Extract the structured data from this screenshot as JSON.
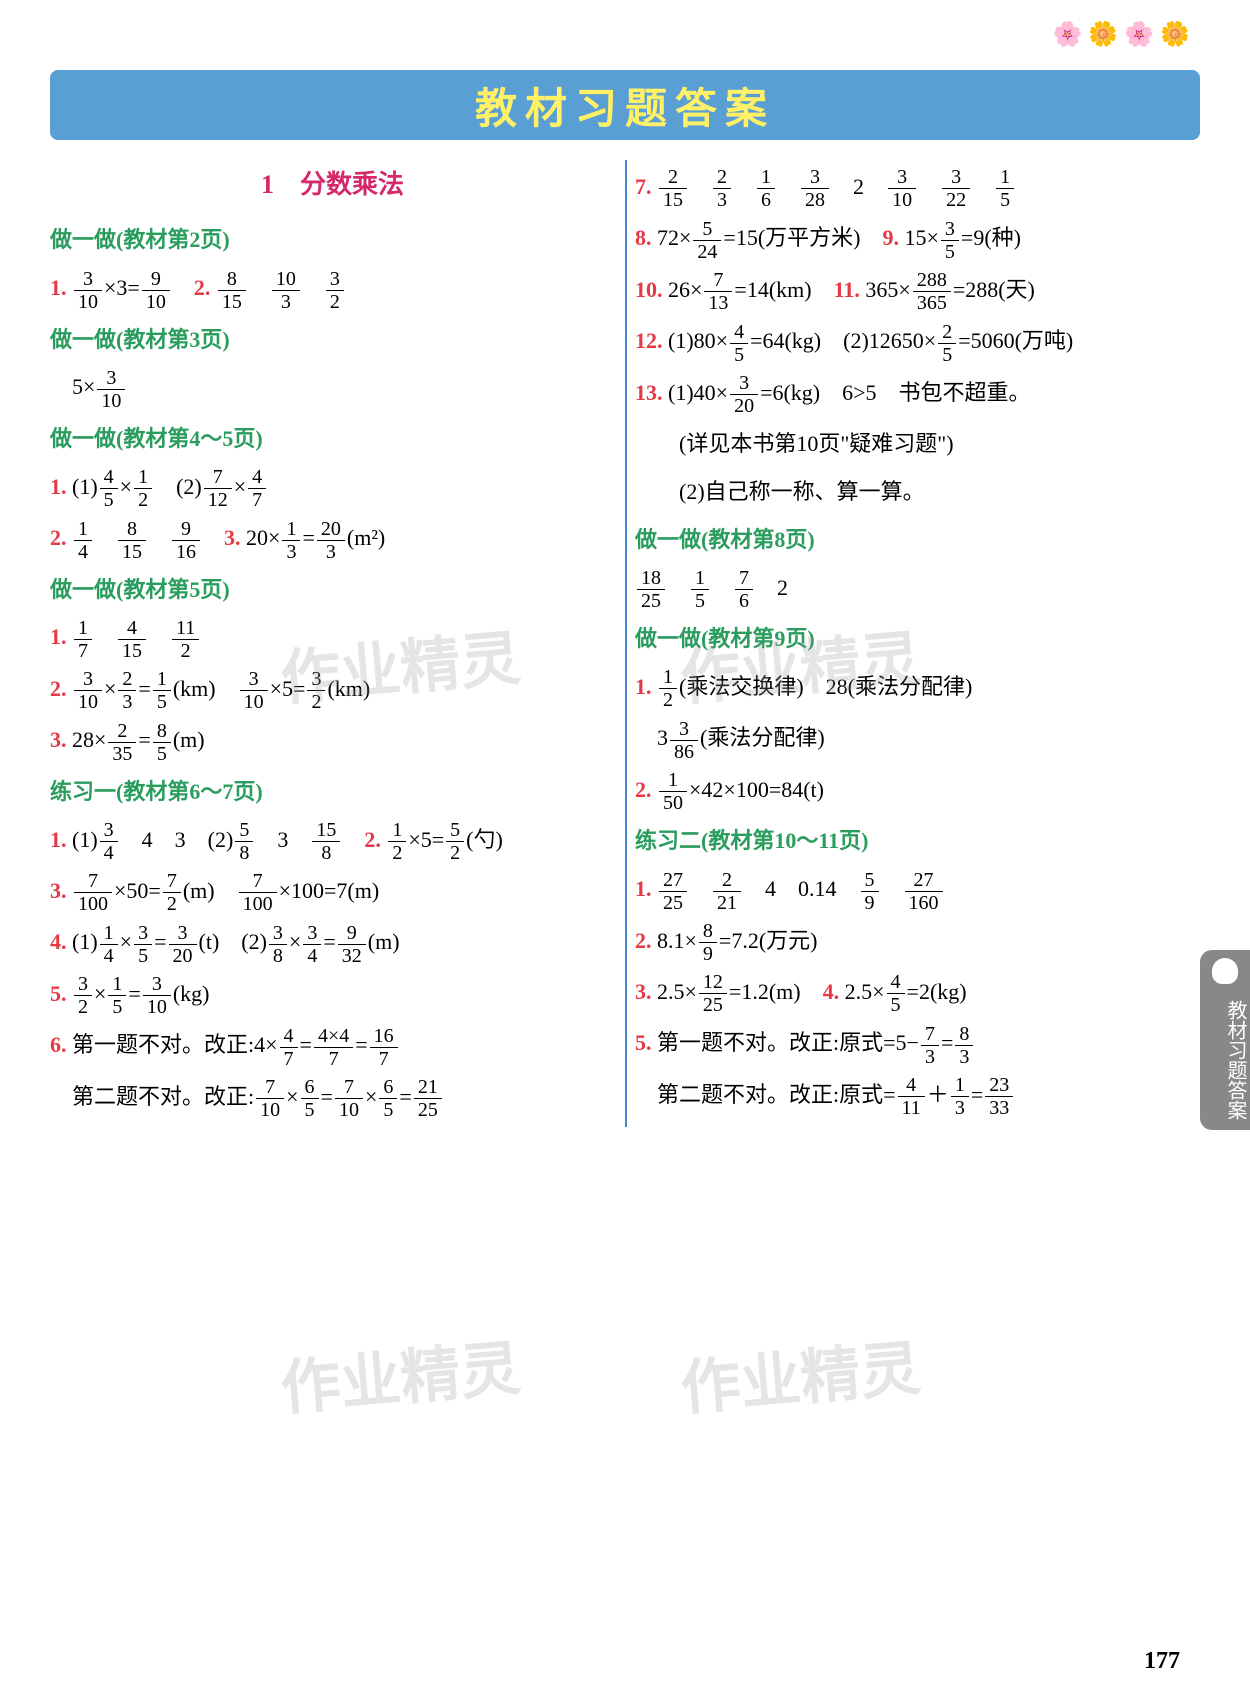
{
  "banner_title": "教材习题答案",
  "chapter_title": "1　分数乘法",
  "page_number": "177",
  "side_tab": "教材习题答案",
  "watermark": "作业精灵",
  "colors": {
    "banner_bg": "#5a9fd4",
    "banner_text": "#fff066",
    "chapter_title": "#d4286b",
    "heading_green": "#2a9d5e",
    "number_red": "#e63946",
    "divider": "#4488cc",
    "side_tab_bg": "#888888",
    "body_text": "#000000",
    "background": "#ffffff"
  },
  "typography": {
    "banner_fontsize": 42,
    "chapter_fontsize": 26,
    "body_fontsize": 22,
    "frac_fontsize": 20,
    "page_num_fontsize": 24
  },
  "left_column": [
    {
      "type": "heading",
      "text": "做一做(教材第2页)"
    },
    {
      "type": "item",
      "num": "1.",
      "parts": [
        {
          "frac": [
            3,
            10
          ]
        },
        "×3=",
        {
          "frac": [
            9,
            10
          ]
        },
        "　"
      ],
      "num2": "2.",
      "parts2": [
        {
          "frac": [
            8,
            15
          ]
        },
        "　",
        {
          "frac": [
            10,
            3
          ]
        },
        "　",
        {
          "frac": [
            3,
            2
          ]
        }
      ]
    },
    {
      "type": "heading",
      "text": "做一做(教材第3页)"
    },
    {
      "type": "plain",
      "parts": [
        "　5×",
        {
          "frac": [
            3,
            10
          ]
        }
      ]
    },
    {
      "type": "heading",
      "text": "做一做(教材第4～5页)"
    },
    {
      "type": "item",
      "num": "1.",
      "parts": [
        "(1)",
        {
          "frac": [
            4,
            5
          ]
        },
        "×",
        {
          "frac": [
            1,
            2
          ]
        },
        "　(2)",
        {
          "frac": [
            7,
            12
          ]
        },
        "×",
        {
          "frac": [
            4,
            7
          ]
        }
      ]
    },
    {
      "type": "item",
      "num": "2.",
      "parts": [
        {
          "frac": [
            1,
            4
          ]
        },
        "　",
        {
          "frac": [
            8,
            15
          ]
        },
        "　",
        {
          "frac": [
            9,
            16
          ]
        },
        "　"
      ],
      "num2": "3.",
      "parts2": [
        "20×",
        {
          "frac": [
            1,
            3
          ]
        },
        "=",
        {
          "frac": [
            20,
            3
          ]
        },
        "(m²)"
      ]
    },
    {
      "type": "heading",
      "text": "做一做(教材第5页)"
    },
    {
      "type": "item",
      "num": "1.",
      "parts": [
        {
          "frac": [
            1,
            7
          ]
        },
        "　",
        {
          "frac": [
            4,
            15
          ]
        },
        "　",
        {
          "frac": [
            11,
            2
          ]
        }
      ]
    },
    {
      "type": "item",
      "num": "2.",
      "parts": [
        {
          "frac": [
            3,
            10
          ]
        },
        "×",
        {
          "frac": [
            2,
            3
          ]
        },
        "=",
        {
          "frac": [
            1,
            5
          ]
        },
        "(km)　",
        {
          "frac": [
            3,
            10
          ]
        },
        "×5=",
        {
          "frac": [
            3,
            2
          ]
        },
        "(km)"
      ]
    },
    {
      "type": "item",
      "num": "3.",
      "parts": [
        "28×",
        {
          "frac": [
            2,
            35
          ]
        },
        "=",
        {
          "frac": [
            8,
            5
          ]
        },
        "(m)"
      ]
    },
    {
      "type": "heading",
      "text": "练习一(教材第6～7页)"
    },
    {
      "type": "item",
      "num": "1.",
      "parts": [
        "(1)",
        {
          "frac": [
            3,
            4
          ]
        },
        "　4　3　(2)",
        {
          "frac": [
            5,
            8
          ]
        },
        "　3　",
        {
          "frac": [
            15,
            8
          ]
        },
        "　"
      ],
      "num2": "2.",
      "parts2": [
        {
          "frac": [
            1,
            2
          ]
        },
        "×5=",
        {
          "frac": [
            5,
            2
          ]
        },
        "(勺)"
      ]
    },
    {
      "type": "item",
      "num": "3.",
      "parts": [
        {
          "frac": [
            7,
            100
          ]
        },
        "×50=",
        {
          "frac": [
            7,
            2
          ]
        },
        "(m)　",
        {
          "frac": [
            7,
            100
          ]
        },
        "×100=7(m)"
      ]
    },
    {
      "type": "item",
      "num": "4.",
      "parts": [
        "(1)",
        {
          "frac": [
            1,
            4
          ]
        },
        "×",
        {
          "frac": [
            3,
            5
          ]
        },
        "=",
        {
          "frac": [
            3,
            20
          ]
        },
        "(t)　(2)",
        {
          "frac": [
            3,
            8
          ]
        },
        "×",
        {
          "frac": [
            3,
            4
          ]
        },
        "=",
        {
          "frac": [
            9,
            32
          ]
        },
        "(m)"
      ]
    },
    {
      "type": "item",
      "num": "5.",
      "parts": [
        {
          "frac": [
            3,
            2
          ]
        },
        "×",
        {
          "frac": [
            1,
            5
          ]
        },
        "=",
        {
          "frac": [
            3,
            10
          ]
        },
        "(kg)"
      ]
    },
    {
      "type": "item",
      "num": "6.",
      "parts": [
        "第一题不对。改正:4×",
        {
          "frac": [
            4,
            7
          ]
        },
        "=",
        {
          "frac": [
            "4×4",
            7
          ]
        },
        "=",
        {
          "frac": [
            16,
            7
          ]
        }
      ]
    },
    {
      "type": "plain",
      "parts": [
        "　第二题不对。改正:",
        {
          "frac": [
            7,
            10
          ]
        },
        "×",
        {
          "frac": [
            6,
            5
          ]
        },
        "=",
        {
          "frac": [
            7,
            10
          ]
        },
        "×",
        {
          "frac": [
            6,
            5
          ]
        },
        "=",
        {
          "frac": [
            21,
            25
          ]
        }
      ]
    }
  ],
  "right_column": [
    {
      "type": "item",
      "num": "7.",
      "parts": [
        {
          "frac": [
            2,
            15
          ]
        },
        "　",
        {
          "frac": [
            2,
            3
          ]
        },
        "　",
        {
          "frac": [
            1,
            6
          ]
        },
        "　",
        {
          "frac": [
            3,
            28
          ]
        },
        "　2　",
        {
          "frac": [
            3,
            10
          ]
        },
        "　",
        {
          "frac": [
            3,
            22
          ]
        },
        "　",
        {
          "frac": [
            1,
            5
          ]
        }
      ]
    },
    {
      "type": "item",
      "num": "8.",
      "parts": [
        "72×",
        {
          "frac": [
            5,
            24
          ]
        },
        "=15(万平方米)　"
      ],
      "num2": "9.",
      "parts2": [
        "15×",
        {
          "frac": [
            3,
            5
          ]
        },
        "=9(种)"
      ]
    },
    {
      "type": "item",
      "num": "10.",
      "parts": [
        "26×",
        {
          "frac": [
            7,
            13
          ]
        },
        "=14(km)　"
      ],
      "num2": "11.",
      "parts2": [
        "365×",
        {
          "frac": [
            288,
            365
          ]
        },
        "=288(天)"
      ]
    },
    {
      "type": "item",
      "num": "12.",
      "parts": [
        "(1)80×",
        {
          "frac": [
            4,
            5
          ]
        },
        "=64(kg)　(2)12650×",
        {
          "frac": [
            2,
            5
          ]
        },
        "=5060(万吨)"
      ]
    },
    {
      "type": "item",
      "num": "13.",
      "parts": [
        "(1)40×",
        {
          "frac": [
            3,
            20
          ]
        },
        "=6(kg)　6>5　书包不超重。"
      ]
    },
    {
      "type": "plain",
      "parts": [
        "　　(详见本书第10页\"疑难习题\")"
      ]
    },
    {
      "type": "plain",
      "parts": [
        "　　(2)自己称一称、算一算。"
      ]
    },
    {
      "type": "heading",
      "text": "做一做(教材第8页)"
    },
    {
      "type": "plain",
      "parts": [
        {
          "frac": [
            18,
            25
          ]
        },
        "　",
        {
          "frac": [
            1,
            5
          ]
        },
        "　",
        {
          "frac": [
            7,
            6
          ]
        },
        "　2"
      ]
    },
    {
      "type": "heading",
      "text": "做一做(教材第9页)"
    },
    {
      "type": "item",
      "num": "1.",
      "parts": [
        {
          "frac": [
            1,
            2
          ]
        },
        "(乘法交换律)　28(乘法分配律)"
      ]
    },
    {
      "type": "plain",
      "parts": [
        "　3",
        {
          "frac": [
            3,
            86
          ]
        },
        "(乘法分配律)"
      ]
    },
    {
      "type": "item",
      "num": "2.",
      "parts": [
        {
          "frac": [
            1,
            50
          ]
        },
        "×42×100=84(t)"
      ]
    },
    {
      "type": "heading",
      "text": "练习二(教材第10～11页)"
    },
    {
      "type": "item",
      "num": "1.",
      "parts": [
        {
          "frac": [
            27,
            25
          ]
        },
        "　",
        {
          "frac": [
            2,
            21
          ]
        },
        "　4　0.14　",
        {
          "frac": [
            5,
            9
          ]
        },
        "　",
        {
          "frac": [
            27,
            160
          ]
        }
      ]
    },
    {
      "type": "item",
      "num": "2.",
      "parts": [
        "8.1×",
        {
          "frac": [
            8,
            9
          ]
        },
        "=7.2(万元)"
      ]
    },
    {
      "type": "item",
      "num": "3.",
      "parts": [
        "2.5×",
        {
          "frac": [
            12,
            25
          ]
        },
        "=1.2(m)　"
      ],
      "num2": "4.",
      "parts2": [
        "2.5×",
        {
          "frac": [
            4,
            5
          ]
        },
        "=2(kg)"
      ]
    },
    {
      "type": "item",
      "num": "5.",
      "parts": [
        "第一题不对。改正:原式=5−",
        {
          "frac": [
            7,
            3
          ]
        },
        "=",
        {
          "frac": [
            8,
            3
          ]
        }
      ]
    },
    {
      "type": "plain",
      "parts": [
        "　第二题不对。改正:原式=",
        {
          "frac": [
            4,
            11
          ]
        },
        "＋",
        {
          "frac": [
            1,
            3
          ]
        },
        "=",
        {
          "frac": [
            23,
            33
          ]
        }
      ]
    }
  ]
}
